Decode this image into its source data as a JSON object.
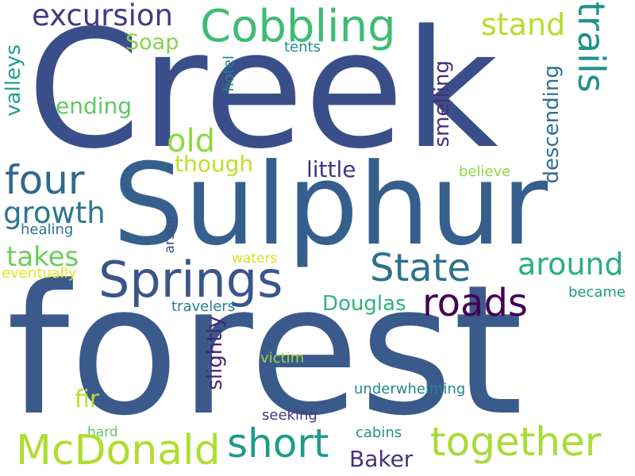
{
  "words": {
    "creek": {
      "text": "Creek",
      "color": "#3a4f8a"
    },
    "forest": {
      "text": "forest",
      "color": "#3b5a8c"
    },
    "sulphur": {
      "text": "Sulphur",
      "color": "#355f8d"
    },
    "springs": {
      "text": "Springs",
      "color": "#39568c"
    },
    "cobbling": {
      "text": "Cobbling",
      "color": "#3dbc74"
    },
    "excursion": {
      "text": "excursion",
      "color": "#443a83"
    },
    "trails": {
      "text": "trails",
      "color": "#21918c"
    },
    "stand": {
      "text": "stand",
      "color": "#b5de2b"
    },
    "four": {
      "text": "four",
      "color": "#31688e"
    },
    "growth": {
      "text": "growth",
      "color": "#2a788e"
    },
    "takes": {
      "text": "takes",
      "color": "#6ccd5a"
    },
    "old": {
      "text": "old",
      "color": "#90d743"
    },
    "though": {
      "text": "though",
      "color": "#c0df25"
    },
    "ending": {
      "text": "ending",
      "color": "#5ec962"
    },
    "soap": {
      "text": "Soap",
      "color": "#86d549"
    },
    "valleys": {
      "text": "valleys",
      "color": "#1fa188"
    },
    "hotel": {
      "text": "hotel",
      "color": "#26828e"
    },
    "tents": {
      "text": "tents",
      "color": "#23898e"
    },
    "smelling": {
      "text": "smelling",
      "color": "#472c7a"
    },
    "descending": {
      "text": "descending",
      "color": "#2e6e8e"
    },
    "little": {
      "text": "little",
      "color": "#463480"
    },
    "believe": {
      "text": "believe",
      "color": "#8bd646"
    },
    "state": {
      "text": "State",
      "color": "#2d718e"
    },
    "around": {
      "text": "around",
      "color": "#28ae80"
    },
    "roads": {
      "text": "roads",
      "color": "#440154"
    },
    "douglas": {
      "text": "Douglas",
      "color": "#2fb47c"
    },
    "became": {
      "text": "became",
      "color": "#1f9a8a"
    },
    "healing": {
      "text": "healing",
      "color": "#2c728e"
    },
    "arson": {
      "text": "arson",
      "color": "#3b528b"
    },
    "waters": {
      "text": "waters",
      "color": "#d2e21b"
    },
    "eventually": {
      "text": "eventually",
      "color": "#e5e419"
    },
    "travelers": {
      "text": "travelers",
      "color": "#287d8e"
    },
    "slightly": {
      "text": "slightly",
      "color": "#482475"
    },
    "victim": {
      "text": "victim",
      "color": "#a0da39"
    },
    "fir": {
      "text": "fir",
      "color": "#b8de29"
    },
    "underwhelming": {
      "text": "underwhelming",
      "color": "#24868e"
    },
    "seeking": {
      "text": "seeking",
      "color": "#453781"
    },
    "hard": {
      "text": "hard",
      "color": "#5cc863"
    },
    "cabins": {
      "text": "cabins",
      "color": "#20928c"
    },
    "mcdonald": {
      "text": "McDonald",
      "color": "#b0dd2f"
    },
    "short": {
      "text": "short",
      "color": "#1e9b8a"
    },
    "baker": {
      "text": "Baker",
      "color": "#46327e"
    },
    "together": {
      "text": "together",
      "color": "#a8db34"
    }
  }
}
